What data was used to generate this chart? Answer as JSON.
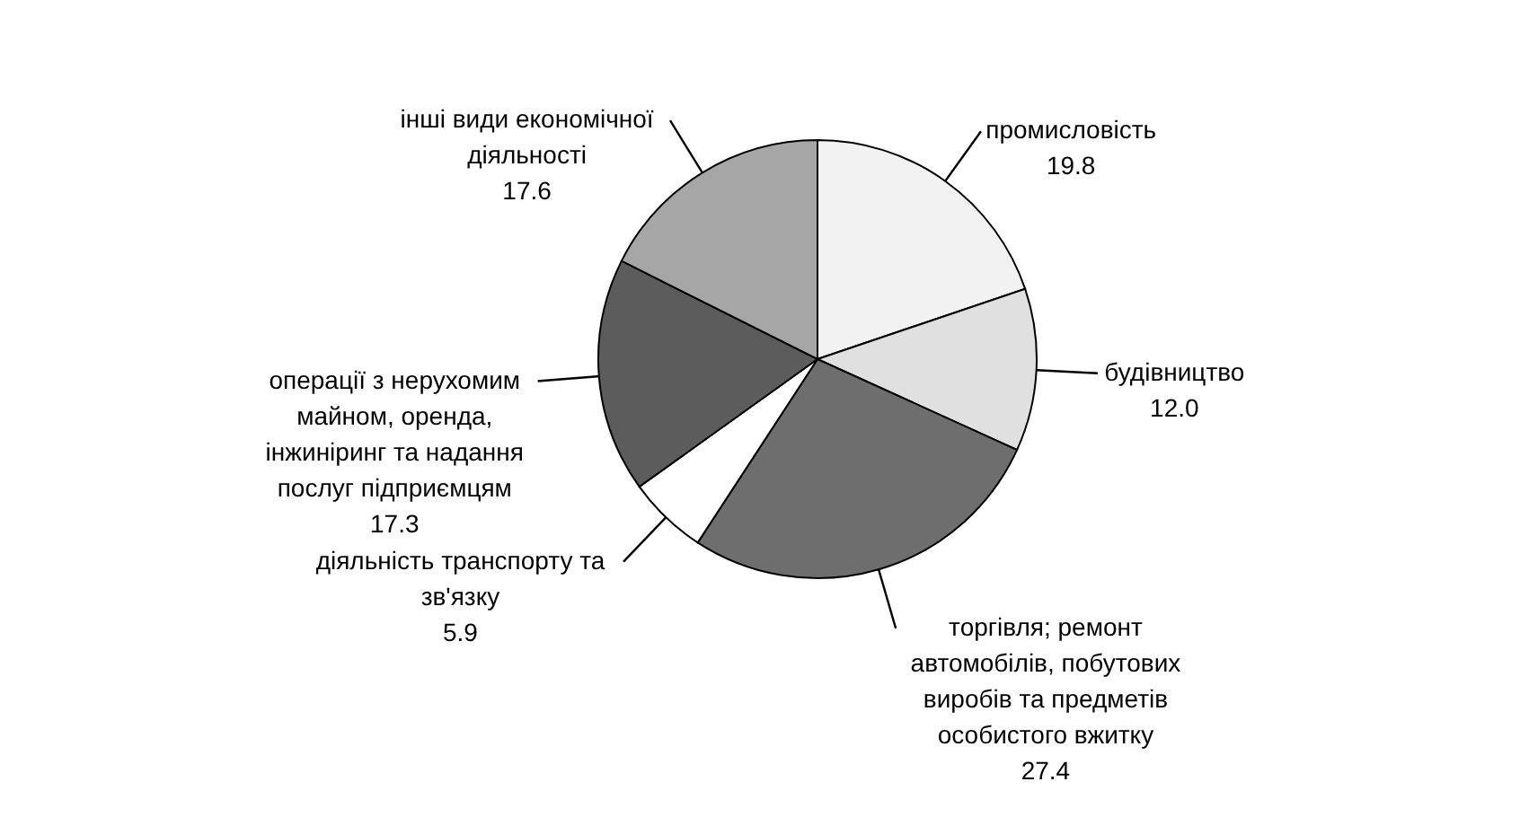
{
  "chart_data": {
    "type": "pie",
    "categories": [
      "промисловість",
      "будівництво",
      "торгівля; ремонт автомобілів, побутових виробів та предметів особистого вжитку",
      "діяльність транспорту та зв'язку",
      "операції з нерухомим майном, оренда, інжиніринг та надання послуг підприємцям",
      "інші види економічної діяльності"
    ],
    "values": [
      19.8,
      12.0,
      27.4,
      5.9,
      17.3,
      17.6
    ],
    "colors": [
      "#f2f2f2",
      "#e0e0e0",
      "#6e6e6e",
      "#ffffff",
      "#5c5c5c",
      "#a6a6a6"
    ],
    "value_labels": [
      "19.8",
      "12.0",
      "27.4",
      "5.9",
      "17.3",
      "17.6"
    ]
  }
}
